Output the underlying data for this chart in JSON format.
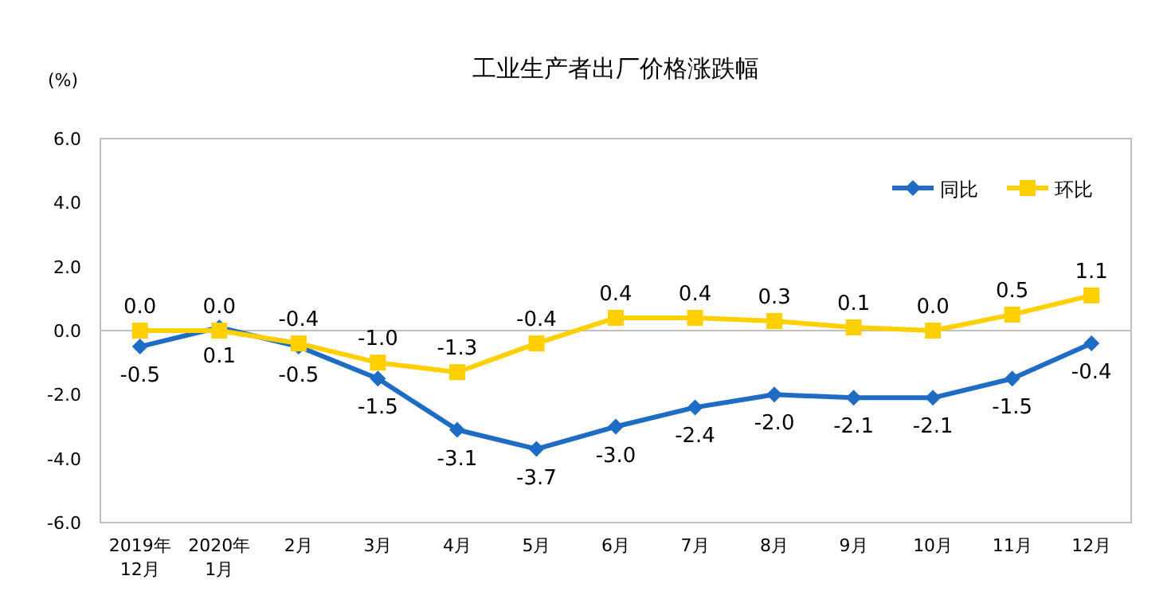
{
  "chart_data": {
    "type": "line",
    "title": "工业生产者出厂价格涨跌幅",
    "ylabel": "(%)",
    "categories": [
      "2019年\n12月",
      "2020年\n1月",
      "2月",
      "3月",
      "4月",
      "5月",
      "6月",
      "7月",
      "8月",
      "9月",
      "10月",
      "11月",
      "12月"
    ],
    "series": [
      {
        "name": "同比",
        "color": "#1f6cc4",
        "marker": "diamond",
        "values": [
          -0.5,
          0.1,
          -0.5,
          -1.5,
          -3.1,
          -3.7,
          -3.0,
          -2.4,
          -2.0,
          -2.1,
          -2.1,
          -1.5,
          -0.4
        ],
        "value_labels": [
          "-0.5",
          "0.1",
          "-0.5",
          "-1.5",
          "-3.1",
          "-3.7",
          "-3.0",
          "-2.4",
          "-2.0",
          "-2.1",
          "-2.1",
          "-1.5",
          "-0.4"
        ]
      },
      {
        "name": "环比",
        "color": "#ffd000",
        "marker": "square",
        "values": [
          0.0,
          0.0,
          -0.4,
          -1.0,
          -1.3,
          -0.4,
          0.4,
          0.4,
          0.3,
          0.1,
          0.0,
          0.5,
          1.1
        ],
        "value_labels": [
          "0.0",
          "0.0",
          "-0.4",
          "-1.0",
          "-1.3",
          "-0.4",
          "0.4",
          "0.4",
          "0.3",
          "0.1",
          "0.0",
          "0.5",
          "1.1"
        ]
      }
    ],
    "ylim": [
      -6,
      6
    ],
    "yticks": [
      {
        "value": -6,
        "label": "-6.0"
      },
      {
        "value": -4,
        "label": "-4.0"
      },
      {
        "value": -2,
        "label": "-2.0"
      },
      {
        "value": 0,
        "label": "0.0"
      },
      {
        "value": 2,
        "label": "2.0"
      },
      {
        "value": 4,
        "label": "4.0"
      },
      {
        "value": 6,
        "label": "6.0"
      }
    ],
    "legend": "top right",
    "line_style": "solid"
  }
}
